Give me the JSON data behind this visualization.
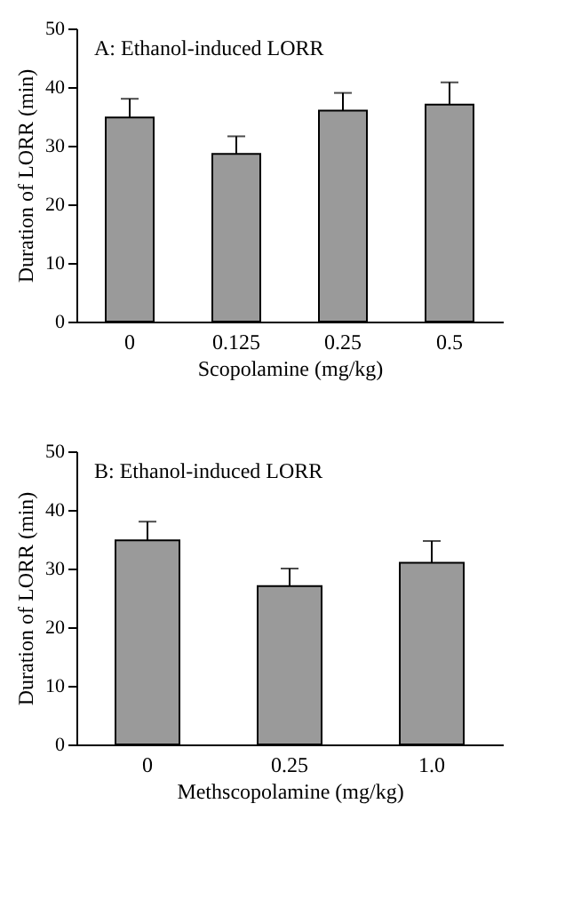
{
  "chart_data": [
    {
      "type": "bar",
      "title": "A: Ethanol-induced LORR",
      "xlabel": "Scopolamine (mg/kg)",
      "ylabel": "Duration of  LORR  (min)",
      "categories": [
        "0",
        "0.125",
        "0.25",
        "0.5"
      ],
      "values": [
        34.8,
        28.6,
        36,
        37
      ],
      "errors": [
        3.2,
        3,
        3,
        3.8
      ],
      "color": "#9a9a9a",
      "ylim": [
        0,
        50
      ],
      "yticks": [
        0,
        10,
        20,
        30,
        40,
        50
      ]
    },
    {
      "type": "bar",
      "title": "B: Ethanol-induced LORR",
      "xlabel": "Methscopolamine (mg/kg)",
      "ylabel": "Duration of  LORR  (min)",
      "categories": [
        "0",
        "0.25",
        "1.0"
      ],
      "values": [
        34.8,
        27,
        31
      ],
      "errors": [
        3.2,
        3,
        3.7
      ],
      "color": "#9a9a9a",
      "ylim": [
        0,
        50
      ],
      "yticks": [
        0,
        10,
        20,
        30,
        40,
        50
      ]
    }
  ]
}
